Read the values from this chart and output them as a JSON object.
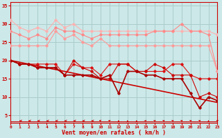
{
  "x": [
    0,
    1,
    2,
    3,
    4,
    5,
    6,
    7,
    8,
    9,
    10,
    11,
    12,
    13,
    14,
    15,
    16,
    17,
    18,
    19,
    20,
    21,
    22,
    23
  ],
  "line_gust1": [
    31,
    29,
    28,
    29,
    28,
    31,
    29,
    30,
    28,
    28,
    28,
    28,
    28,
    28,
    28,
    28,
    28,
    28,
    28,
    28,
    28,
    28,
    28,
    27
  ],
  "line_gust2": [
    28,
    27,
    26,
    27,
    26,
    29,
    28,
    28,
    27,
    26,
    27,
    27,
    27,
    27,
    27,
    27,
    28,
    28,
    28,
    30,
    28,
    28,
    27,
    17
  ],
  "line_gust3": [
    24,
    24,
    24,
    24,
    24,
    28,
    26,
    27,
    25,
    24,
    26,
    24,
    24,
    24,
    24,
    24,
    24,
    24,
    24,
    24,
    24,
    24,
    24,
    17
  ],
  "line_avg1": [
    20,
    19,
    19,
    19,
    19,
    19,
    16,
    19,
    18,
    18,
    16,
    19,
    19,
    19,
    17,
    17,
    17,
    17,
    19,
    19,
    16,
    15,
    15,
    15
  ],
  "line_avg2": [
    20,
    19,
    19,
    18,
    18,
    18,
    16,
    20,
    18,
    17,
    15,
    15,
    19,
    19,
    17,
    17,
    19,
    18,
    16,
    16,
    16,
    10,
    11,
    10
  ],
  "line_avg3": [
    20,
    19,
    19,
    18,
    18,
    18,
    16,
    16,
    16,
    16,
    15,
    16,
    11,
    17,
    17,
    16,
    16,
    15,
    15,
    15,
    11,
    7,
    10,
    9
  ],
  "line_trend": [
    20,
    19.5,
    19.0,
    18.5,
    18.0,
    17.5,
    17.0,
    16.5,
    16.0,
    15.5,
    15.0,
    14.5,
    14.0,
    13.5,
    13.0,
    12.5,
    12.0,
    11.5,
    11.0,
    10.5,
    10.0,
    9.5,
    9.0,
    8.5
  ],
  "bg_color": "#cce8e8",
  "grid_color": "#aacccc",
  "color_light1": "#ffb0b0",
  "color_light2": "#ff8888",
  "color_light3": "#ff9999",
  "color_dark1": "#dd1111",
  "color_dark2": "#cc0000",
  "color_dark3": "#aa0000",
  "color_trend": "#cc0000",
  "color_arrow": "#cc0000",
  "color_axis": "#cc0000",
  "color_text": "#cc0000",
  "xlabel": "Vent moyen/en rafales ( km/h )",
  "ylim": [
    3,
    36
  ],
  "xlim": [
    0,
    23
  ],
  "yticks": [
    5,
    10,
    15,
    20,
    25,
    30,
    35
  ],
  "xticks": [
    0,
    1,
    2,
    3,
    4,
    5,
    6,
    7,
    8,
    9,
    10,
    11,
    12,
    13,
    14,
    15,
    16,
    17,
    18,
    19,
    20,
    21,
    22,
    23
  ],
  "arrow_angles_deg": [
    180,
    180,
    180,
    180,
    180,
    180,
    180,
    180,
    180,
    180,
    150,
    135,
    90,
    90,
    90,
    60,
    45,
    45,
    45,
    45,
    45,
    45,
    90,
    135
  ]
}
